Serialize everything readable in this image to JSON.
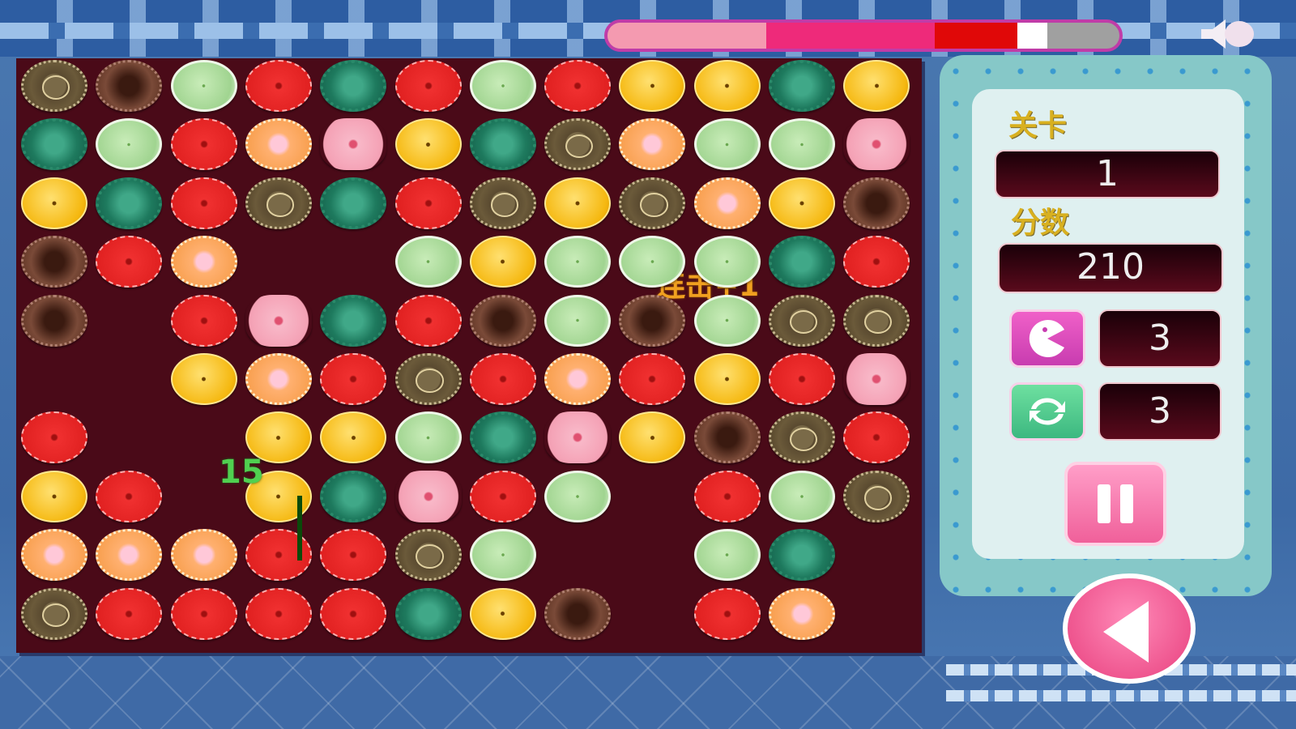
{
  "hud": {
    "level_label": "关卡",
    "level_value": "1",
    "score_label": "分数",
    "score_value": "210",
    "bomb_count": "3",
    "shuffle_count": "3",
    "timer_remaining_fraction": 0.87
  },
  "board": {
    "combo_text": "连击+1",
    "floating_score": "15",
    "legend": {
      "B": "brown-star-button",
      "C": "chocolate-clover-button",
      "L": "light-green-button",
      "R": "red-button",
      "G": "green-gear-button",
      "Y": "yellow-button",
      "P": "peach-pig-button",
      "F": "pink-flower-button",
      ".": "empty"
    },
    "rows": [
      "BCLRGRLRYYGY",
      "GLRPFYGBPLLF",
      "YGRBGRBYBPYC",
      "CRP..LYLLLGR",
      "C.RFGRCLCLBB",
      "..YPRBRPRYRF",
      "R..YYLGFYCBR",
      "YR.YGFRL.RLB",
      "PPPRRBL..LG.",
      "BRRRRGYC.RP."
    ]
  },
  "colors": {
    "board_bg": "#4a0a18",
    "accent_pink": "#f0609a",
    "gold_label": "#d8b020"
  },
  "icons": {
    "speaker": "speaker-icon",
    "bomb": "pacman-icon",
    "shuffle": "refresh-icon",
    "pause": "pause-icon",
    "back": "back-arrow-icon"
  }
}
